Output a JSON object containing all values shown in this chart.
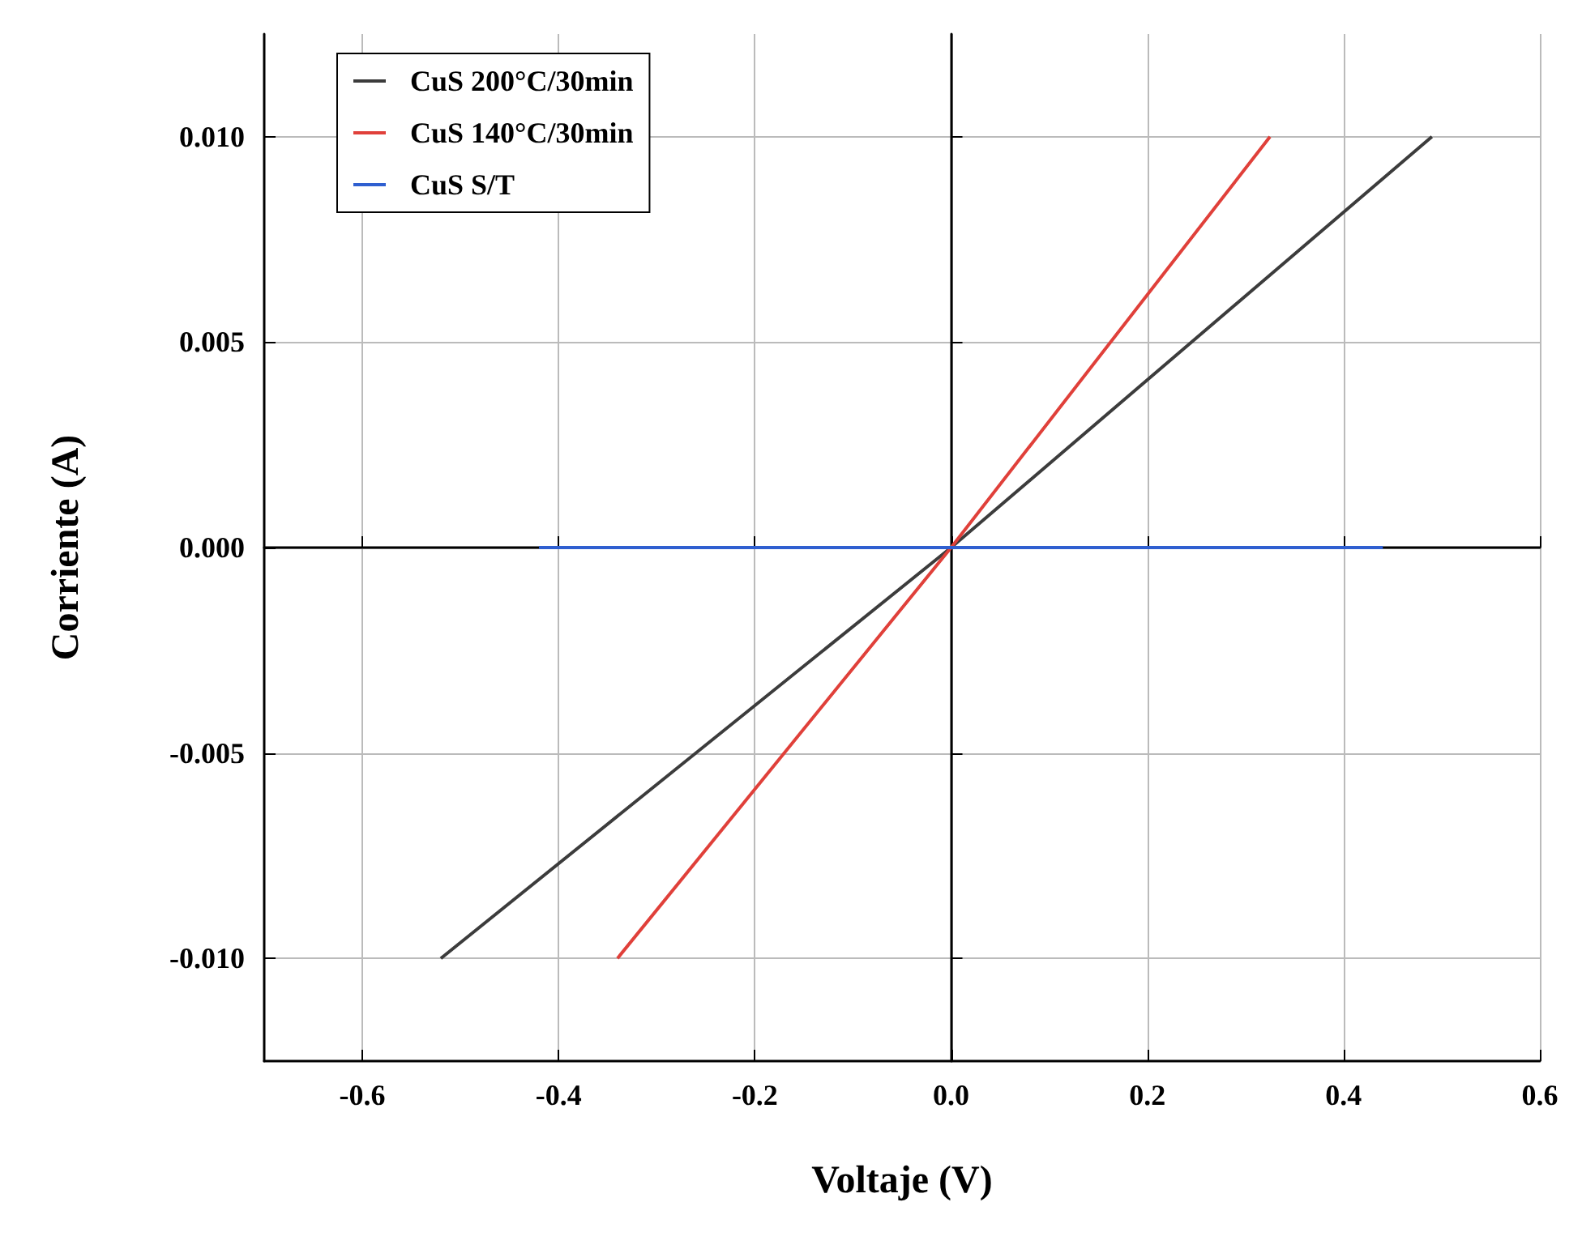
{
  "chart_data": {
    "type": "line",
    "xlabel": "Voltaje (V)",
    "ylabel": "Corriente (A)",
    "xlim": [
      -0.7,
      0.6
    ],
    "ylim": [
      -0.0125,
      0.0125
    ],
    "xticks": [
      -0.6,
      -0.4,
      -0.2,
      {
        "value": 0,
        "label": "0.0"
      },
      0.2,
      0.4,
      0.6
    ],
    "yticks": [
      {
        "value": -0.01,
        "label": "-0.010"
      },
      {
        "value": -0.005,
        "label": "-0.005"
      },
      {
        "value": 0,
        "label": "0.000"
      },
      {
        "value": 0.005,
        "label": "0.005"
      },
      {
        "value": 0.01,
        "label": "0.010"
      }
    ],
    "series": [
      {
        "name": "CuS 200°C/30min",
        "color": "#3c3c3c",
        "x": [
          -0.52,
          0,
          0.49
        ],
        "values": [
          -0.01,
          0,
          0.01
        ]
      },
      {
        "name": "CuS 140°C/30min",
        "color": "#e0403a",
        "x": [
          -0.34,
          0,
          0.325
        ],
        "values": [
          -0.01,
          0,
          0.01
        ]
      },
      {
        "name": "CuS S/T",
        "color": "#2f5fd0",
        "x": [
          -0.42,
          0,
          0.44
        ],
        "values": [
          0,
          0,
          0
        ]
      }
    ],
    "grid": true,
    "legend": "top left",
    "line_style": "solid",
    "marker": "none"
  }
}
